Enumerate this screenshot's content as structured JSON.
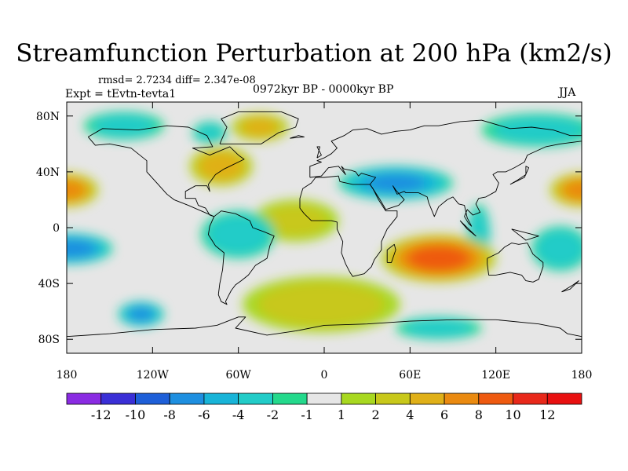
{
  "chart_data": {
    "type": "heatmap",
    "title": "Streamfunction Perturbation at 200 hPa (km2/s)",
    "stats": "rmsd= 2.7234 diff= 2.347e-08",
    "experiment": "Expt = tEvtn-tevta1",
    "period": "0972kyr BP - 0000kyr BP",
    "season": "JJA",
    "xlim": [
      -180,
      180
    ],
    "ylim": [
      -90,
      90
    ],
    "x_ticks": [
      {
        "value": -180,
        "label": "180"
      },
      {
        "value": -120,
        "label": "120W"
      },
      {
        "value": -60,
        "label": "60W"
      },
      {
        "value": 0,
        "label": "0"
      },
      {
        "value": 60,
        "label": "60E"
      },
      {
        "value": 120,
        "label": "120E"
      },
      {
        "value": 180,
        "label": "180"
      }
    ],
    "y_ticks": [
      {
        "value": 80,
        "label": "80N"
      },
      {
        "value": 40,
        "label": "40N"
      },
      {
        "value": 0,
        "label": "0"
      },
      {
        "value": -40,
        "label": "40S"
      },
      {
        "value": -80,
        "label": "80S"
      }
    ],
    "colorbar": {
      "levels": [
        "-12",
        "-10",
        "-8",
        "-6",
        "-4",
        "-2",
        "-1",
        "1",
        "2",
        "4",
        "6",
        "8",
        "10",
        "12"
      ],
      "colors": [
        "#8a2be2",
        "#3a2fd6",
        "#1e5fd8",
        "#1e8fe0",
        "#18b4d8",
        "#22ccc8",
        "#24d98c",
        "#e6e6e6",
        "#a8d820",
        "#c8c81a",
        "#e0b018",
        "#ea8a10",
        "#ee5a10",
        "#e8281a",
        "#e81010"
      ]
    },
    "anomalies": [
      {
        "lon": -180,
        "lat": 27,
        "rlon": 22,
        "rlat": 12,
        "value": 7
      },
      {
        "lon": 180,
        "lat": 27,
        "rlon": 22,
        "rlat": 12,
        "value": 7
      },
      {
        "lon": -72,
        "lat": 44,
        "rlon": 22,
        "rlat": 14,
        "value": 5
      },
      {
        "lon": -45,
        "lat": 72,
        "rlon": 20,
        "rlat": 10,
        "value": 4
      },
      {
        "lon": -80,
        "lat": 68,
        "rlon": 12,
        "rlat": 8,
        "value": -2
      },
      {
        "lon": -178,
        "lat": -15,
        "rlon": 30,
        "rlat": 11,
        "value": -7
      },
      {
        "lon": -128,
        "lat": -62,
        "rlon": 16,
        "rlat": 9,
        "value": -6
      },
      {
        "lon": -140,
        "lat": 73,
        "rlon": 28,
        "rlat": 10,
        "value": -2
      },
      {
        "lon": 50,
        "lat": 32,
        "rlon": 40,
        "rlat": 12,
        "value": -6
      },
      {
        "lon": 150,
        "lat": 70,
        "rlon": 40,
        "rlat": 12,
        "value": -2
      },
      {
        "lon": 108,
        "lat": -5,
        "rlon": 8,
        "rlat": 22,
        "value": -3
      },
      {
        "lon": 165,
        "lat": -15,
        "rlon": 20,
        "rlat": 16,
        "value": -3
      },
      {
        "lon": 80,
        "lat": -22,
        "rlon": 40,
        "rlat": 17,
        "value": 9
      },
      {
        "lon": -2,
        "lat": -55,
        "rlon": 55,
        "rlat": 20,
        "value": 2
      },
      {
        "lon": -20,
        "lat": 5,
        "rlon": 30,
        "rlat": 15,
        "value": 1.5
      },
      {
        "lon": -60,
        "lat": -5,
        "rlon": 26,
        "rlat": 17,
        "value": -3
      },
      {
        "lon": 80,
        "lat": -72,
        "rlon": 30,
        "rlat": 8,
        "value": -2
      }
    ]
  }
}
